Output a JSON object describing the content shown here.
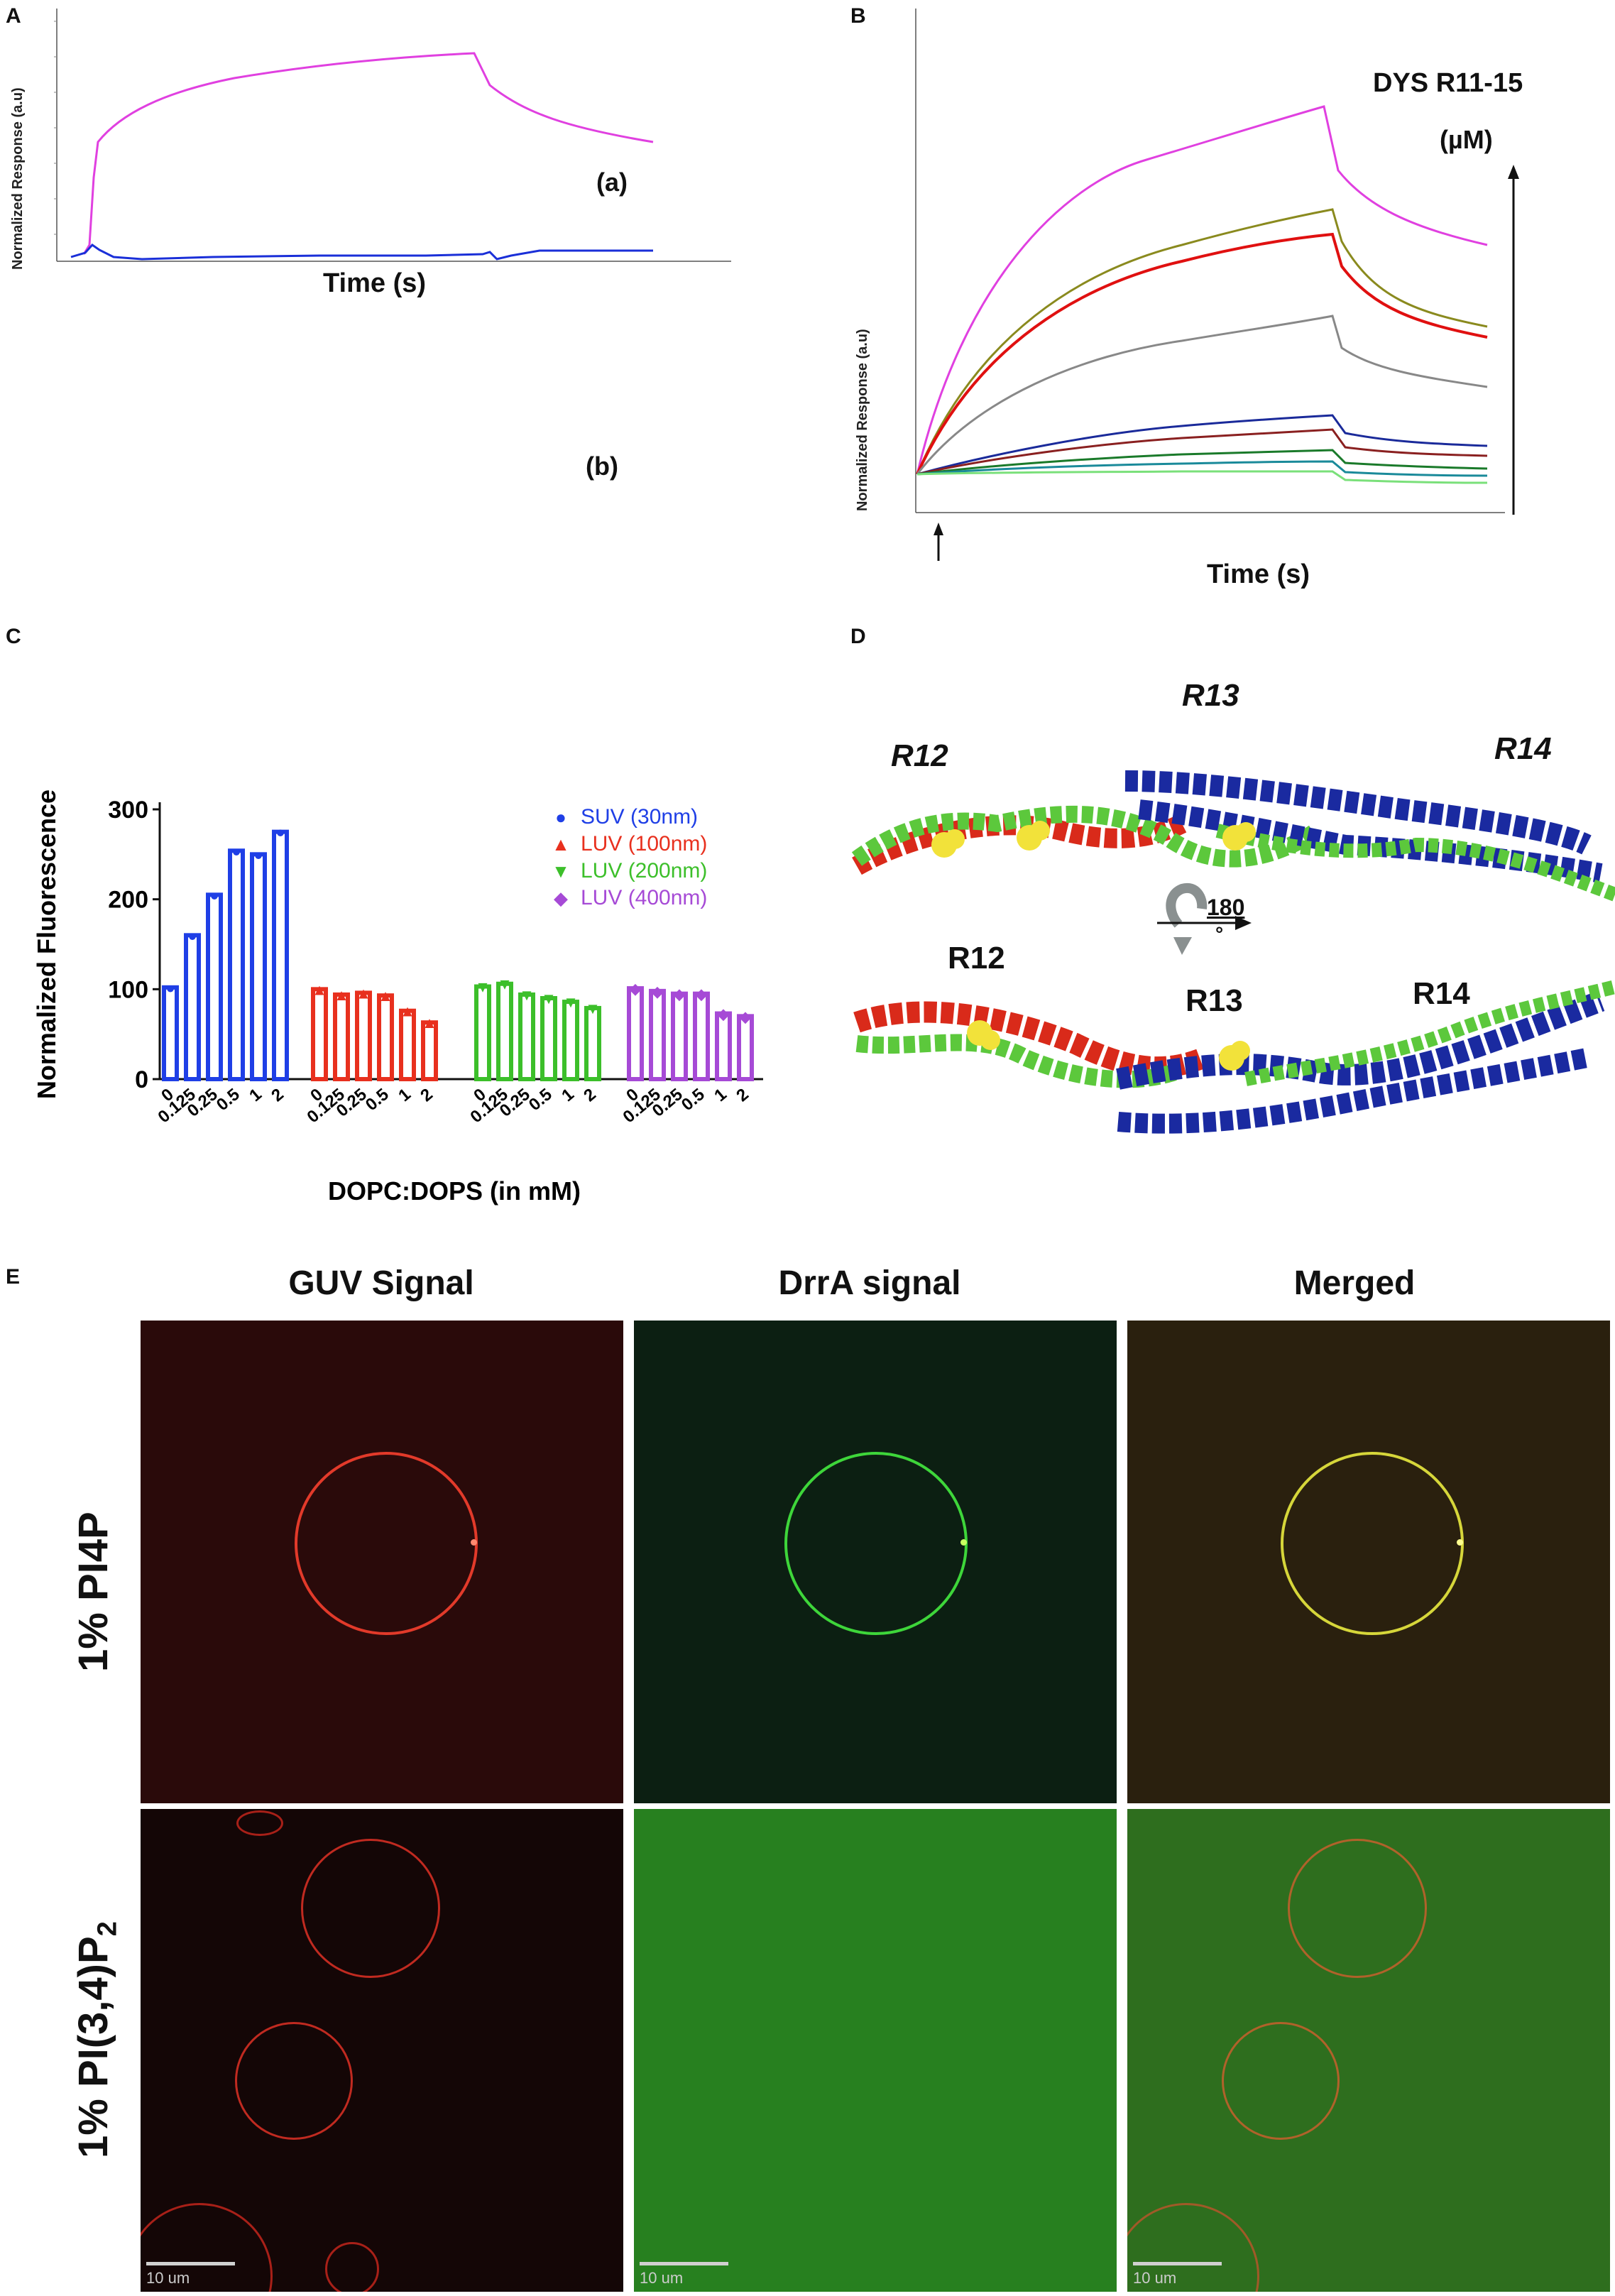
{
  "panels": {
    "a": {
      "label": "A",
      "ylabel": "Normalized Response (a.u)",
      "xlabel": "Time (s)",
      "curve_a_label": "(a)",
      "curve_b_label": "(b)"
    },
    "b": {
      "label": "B",
      "ylabel": "Normalized Response (a.u)",
      "xlabel": "Time (s)",
      "legend_title": "DYS R11-15",
      "legend_unit": "(µM)"
    },
    "c": {
      "label": "C",
      "ylabel": "Normalized Fluorescence",
      "xlabel": "DOPC:DOPS (in mM)"
    },
    "d": {
      "label": "D",
      "top_labels": [
        "R12",
        "R13",
        "R14"
      ],
      "bottom_labels": [
        "R12",
        "R13",
        "R14"
      ],
      "rotation_label": "180",
      "rotation_unit": "°"
    },
    "e": {
      "label": "E",
      "columns": [
        "GUV Signal",
        "DrrA signal",
        "Merged"
      ],
      "rows": [
        "1% PI4P",
        "1% PI(3,4)P",
        "2"
      ],
      "scale_bar": "10 um"
    }
  },
  "colors": {
    "magenta": "#e040e0",
    "blue": "#1a2fd8",
    "suv": "#1f3fe6",
    "luv100": "#e8301e",
    "luv200": "#3cbf2a",
    "luv400": "#a64ad6"
  },
  "chart_data": {
    "type": "bar",
    "title": "",
    "xlabel": "DOPC:DOPS (in mM)",
    "ylabel": "Normalized Fluorescence",
    "ylim": [
      0,
      300
    ],
    "yticks": [
      "0",
      "100",
      "200",
      "300"
    ],
    "categories": [
      "0",
      "0.125",
      "0.25",
      "0.5",
      "1",
      "2"
    ],
    "series": [
      {
        "name": "SUV (30nm)",
        "marker": "●",
        "color": "#1f3fe6",
        "values": [
          102,
          160,
          205,
          254,
          250,
          275
        ]
      },
      {
        "name": "LUV (100nm)",
        "marker": "▲",
        "color": "#e8301e",
        "values": [
          100,
          94,
          96,
          93,
          76,
          63
        ]
      },
      {
        "name": "LUV (200nm)",
        "marker": "▼",
        "color": "#3cbf2a",
        "values": [
          103,
          106,
          94,
          90,
          86,
          79
        ]
      },
      {
        "name": "LUV (400nm)",
        "marker": "◆",
        "color": "#a64ad6",
        "values": [
          101,
          98,
          95,
          95,
          73,
          70
        ]
      }
    ]
  }
}
